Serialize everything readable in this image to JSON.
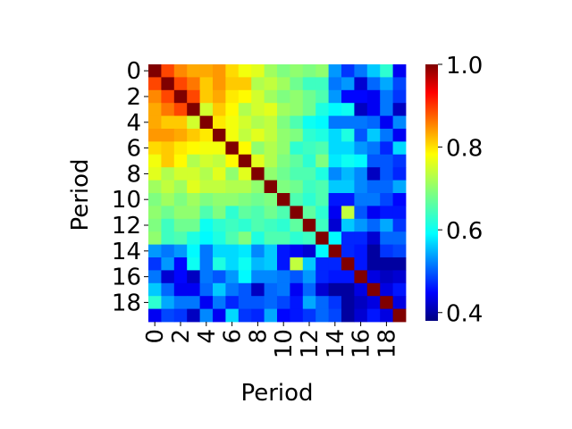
{
  "chart_data": {
    "type": "heatmap",
    "title": "",
    "xlabel": "Period",
    "ylabel": "Period",
    "x_categories": [
      "0",
      "1",
      "2",
      "3",
      "4",
      "5",
      "6",
      "7",
      "8",
      "9",
      "10",
      "11",
      "12",
      "13",
      "14",
      "15",
      "16",
      "17",
      "18",
      "19"
    ],
    "y_categories": [
      "0",
      "1",
      "2",
      "3",
      "4",
      "5",
      "6",
      "7",
      "8",
      "9",
      "10",
      "11",
      "12",
      "13",
      "14",
      "15",
      "16",
      "17",
      "18",
      "19"
    ],
    "x_tick_labels_shown": [
      "0",
      "2",
      "4",
      "6",
      "8",
      "10",
      "12",
      "14",
      "16",
      "18"
    ],
    "y_tick_labels_shown": [
      "0",
      "2",
      "4",
      "6",
      "8",
      "10",
      "12",
      "14",
      "16",
      "18"
    ],
    "colormap": "jet",
    "vmin": 0.38,
    "vmax": 1.0,
    "colorbar_ticks": [
      "0.4",
      "0.6",
      "0.8",
      "1.0"
    ],
    "values": [
      [
        1.0,
        0.88,
        0.84,
        0.82,
        0.82,
        0.83,
        0.79,
        0.76,
        0.75,
        0.71,
        0.69,
        0.7,
        0.69,
        0.7,
        0.55,
        0.49,
        0.53,
        0.58,
        0.64,
        0.45
      ],
      [
        0.88,
        1.0,
        0.88,
        0.85,
        0.8,
        0.83,
        0.8,
        0.8,
        0.72,
        0.73,
        0.71,
        0.68,
        0.65,
        0.65,
        0.53,
        0.55,
        0.43,
        0.52,
        0.56,
        0.5
      ],
      [
        0.84,
        0.88,
        1.0,
        0.88,
        0.8,
        0.82,
        0.78,
        0.77,
        0.74,
        0.71,
        0.69,
        0.7,
        0.68,
        0.66,
        0.55,
        0.46,
        0.46,
        0.45,
        0.53,
        0.49
      ],
      [
        0.82,
        0.85,
        0.88,
        1.0,
        0.74,
        0.8,
        0.77,
        0.72,
        0.74,
        0.75,
        0.71,
        0.7,
        0.68,
        0.63,
        0.61,
        0.62,
        0.42,
        0.45,
        0.53,
        0.42
      ],
      [
        0.82,
        0.8,
        0.8,
        0.74,
        1.0,
        0.78,
        0.76,
        0.74,
        0.72,
        0.73,
        0.69,
        0.66,
        0.62,
        0.61,
        0.53,
        0.53,
        0.53,
        0.52,
        0.45,
        0.54
      ],
      [
        0.83,
        0.83,
        0.82,
        0.8,
        0.78,
        1.0,
        0.76,
        0.73,
        0.75,
        0.73,
        0.7,
        0.69,
        0.64,
        0.63,
        0.59,
        0.63,
        0.51,
        0.58,
        0.53,
        0.45
      ],
      [
        0.79,
        0.8,
        0.78,
        0.77,
        0.76,
        0.76,
        1.0,
        0.77,
        0.7,
        0.72,
        0.7,
        0.64,
        0.65,
        0.66,
        0.59,
        0.59,
        0.55,
        0.53,
        0.48,
        0.59
      ],
      [
        0.76,
        0.8,
        0.77,
        0.72,
        0.74,
        0.73,
        0.77,
        1.0,
        0.75,
        0.72,
        0.69,
        0.67,
        0.64,
        0.69,
        0.6,
        0.62,
        0.61,
        0.51,
        0.51,
        0.49
      ],
      [
        0.75,
        0.72,
        0.74,
        0.74,
        0.72,
        0.75,
        0.7,
        0.75,
        1.0,
        0.7,
        0.68,
        0.66,
        0.66,
        0.63,
        0.54,
        0.57,
        0.54,
        0.42,
        0.51,
        0.48
      ],
      [
        0.71,
        0.73,
        0.71,
        0.75,
        0.73,
        0.73,
        0.72,
        0.72,
        0.7,
        1.0,
        0.69,
        0.68,
        0.65,
        0.66,
        0.58,
        0.58,
        0.54,
        0.52,
        0.52,
        0.56
      ],
      [
        0.69,
        0.71,
        0.69,
        0.71,
        0.69,
        0.7,
        0.7,
        0.69,
        0.68,
        0.69,
        1.0,
        0.66,
        0.64,
        0.66,
        0.47,
        0.47,
        0.53,
        0.53,
        0.5,
        0.46
      ],
      [
        0.7,
        0.68,
        0.7,
        0.7,
        0.66,
        0.69,
        0.64,
        0.67,
        0.66,
        0.68,
        0.66,
        1.0,
        0.67,
        0.64,
        0.45,
        0.73,
        0.51,
        0.45,
        0.47,
        0.47
      ],
      [
        0.69,
        0.65,
        0.68,
        0.68,
        0.62,
        0.64,
        0.65,
        0.64,
        0.66,
        0.65,
        0.64,
        0.67,
        1.0,
        0.65,
        0.43,
        0.58,
        0.55,
        0.52,
        0.56,
        0.49
      ],
      [
        0.7,
        0.65,
        0.66,
        0.63,
        0.61,
        0.63,
        0.66,
        0.69,
        0.63,
        0.66,
        0.66,
        0.64,
        0.65,
        1.0,
        0.61,
        0.48,
        0.48,
        0.43,
        0.52,
        0.52
      ],
      [
        0.55,
        0.53,
        0.55,
        0.61,
        0.53,
        0.59,
        0.59,
        0.6,
        0.54,
        0.58,
        0.47,
        0.45,
        0.43,
        0.61,
        1.0,
        0.48,
        0.47,
        0.4,
        0.49,
        0.5
      ],
      [
        0.49,
        0.55,
        0.46,
        0.62,
        0.53,
        0.63,
        0.59,
        0.62,
        0.57,
        0.58,
        0.47,
        0.73,
        0.58,
        0.48,
        0.48,
        1.0,
        0.47,
        0.4,
        0.4,
        0.4
      ],
      [
        0.53,
        0.43,
        0.46,
        0.42,
        0.53,
        0.51,
        0.55,
        0.61,
        0.54,
        0.54,
        0.53,
        0.51,
        0.55,
        0.48,
        0.47,
        0.47,
        1.0,
        0.44,
        0.42,
        0.43
      ],
      [
        0.58,
        0.52,
        0.45,
        0.45,
        0.52,
        0.58,
        0.53,
        0.51,
        0.42,
        0.52,
        0.53,
        0.45,
        0.52,
        0.43,
        0.4,
        0.4,
        0.44,
        1.0,
        0.44,
        0.47
      ],
      [
        0.64,
        0.56,
        0.53,
        0.53,
        0.45,
        0.53,
        0.48,
        0.51,
        0.51,
        0.52,
        0.5,
        0.47,
        0.56,
        0.52,
        0.49,
        0.4,
        0.42,
        0.44,
        1.0,
        0.44
      ],
      [
        0.45,
        0.5,
        0.49,
        0.42,
        0.54,
        0.45,
        0.59,
        0.49,
        0.48,
        0.56,
        0.46,
        0.47,
        0.49,
        0.52,
        0.5,
        0.4,
        0.43,
        0.47,
        0.44,
        1.0
      ]
    ]
  }
}
